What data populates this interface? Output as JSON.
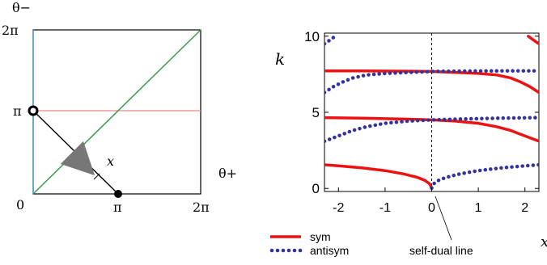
{
  "chart_data": [
    {
      "type": "diagram",
      "xlabel": "θ+",
      "ylabel": "θ−",
      "x_ticks": [
        "0",
        "π",
        "2π"
      ],
      "y_ticks": [
        "2π",
        "π"
      ],
      "annotation": "x",
      "colors": {
        "diagonal": "#3a9a4a",
        "horizontal": "#ee8888",
        "left_axis": "#4aa0c8",
        "frame": "#000000",
        "arrow": "#777777"
      }
    },
    {
      "type": "line",
      "ylabel": "k",
      "xlabel": "x",
      "xlim": [
        -2.3,
        2.3
      ],
      "ylim": [
        -0.2,
        10.2
      ],
      "x_ticks": [
        "-2",
        "-1",
        "0",
        "1",
        "2"
      ],
      "y_ticks": [
        "0",
        "5",
        "10"
      ],
      "vline_x": 0,
      "vline_label": "self-dual line",
      "legend": {
        "placement": "bottom-left",
        "entries": [
          "sym",
          "antisym"
        ]
      },
      "series": [
        {
          "name": "sym",
          "color": "#ee1111",
          "style": "solid",
          "segments": [
            [
              [
                -2.3,
                1.55
              ],
              [
                -2.0,
                1.48
              ],
              [
                -1.5,
                1.35
              ],
              [
                -1.0,
                1.17
              ],
              [
                -0.6,
                0.95
              ],
              [
                -0.3,
                0.72
              ],
              [
                -0.15,
                0.53
              ],
              [
                -0.05,
                0.32
              ],
              [
                0.0,
                0.05
              ]
            ],
            [
              [
                -2.3,
                4.65
              ],
              [
                -1.5,
                4.62
              ],
              [
                -0.5,
                4.55
              ],
              [
                0.0,
                4.5
              ],
              [
                0.5,
                4.42
              ],
              [
                1.0,
                4.28
              ],
              [
                1.4,
                4.05
              ],
              [
                1.7,
                3.8
              ],
              [
                2.0,
                3.45
              ],
              [
                2.3,
                3.1
              ]
            ],
            [
              [
                -2.3,
                7.72
              ],
              [
                -1.5,
                7.72
              ],
              [
                -0.5,
                7.7
              ],
              [
                0.0,
                7.68
              ],
              [
                0.5,
                7.62
              ],
              [
                1.0,
                7.55
              ],
              [
                1.4,
                7.45
              ],
              [
                1.7,
                7.25
              ],
              [
                1.9,
                7.0
              ],
              [
                2.1,
                6.7
              ],
              [
                2.3,
                6.3
              ]
            ],
            [
              [
                2.07,
                10.0
              ],
              [
                2.15,
                9.82
              ],
              [
                2.25,
                9.6
              ],
              [
                2.3,
                9.5
              ]
            ]
          ]
        },
        {
          "name": "antisym",
          "color": "#333399",
          "style": "dotted",
          "segments": [
            [
              [
                0.0,
                0.02
              ],
              [
                0.05,
                0.32
              ],
              [
                0.15,
                0.53
              ],
              [
                0.3,
                0.72
              ],
              [
                0.6,
                0.95
              ],
              [
                1.0,
                1.17
              ],
              [
                1.5,
                1.35
              ],
              [
                2.0,
                1.48
              ],
              [
                2.3,
                1.55
              ]
            ],
            [
              [
                -2.3,
                3.1
              ],
              [
                -2.0,
                3.45
              ],
              [
                -1.7,
                3.8
              ],
              [
                -1.4,
                4.05
              ],
              [
                -1.0,
                4.28
              ],
              [
                -0.5,
                4.42
              ],
              [
                0.0,
                4.5
              ],
              [
                0.5,
                4.55
              ],
              [
                1.5,
                4.62
              ],
              [
                2.3,
                4.65
              ]
            ],
            [
              [
                -2.3,
                6.3
              ],
              [
                -2.1,
                6.7
              ],
              [
                -1.9,
                7.0
              ],
              [
                -1.7,
                7.25
              ],
              [
                -1.4,
                7.45
              ],
              [
                -1.0,
                7.55
              ],
              [
                -0.5,
                7.62
              ],
              [
                0.0,
                7.68
              ],
              [
                0.5,
                7.7
              ],
              [
                1.5,
                7.72
              ],
              [
                2.3,
                7.72
              ]
            ],
            [
              [
                -2.3,
                9.5
              ],
              [
                -2.25,
                9.6
              ],
              [
                -2.15,
                9.82
              ],
              [
                -2.07,
                10.0
              ]
            ]
          ]
        }
      ]
    }
  ]
}
